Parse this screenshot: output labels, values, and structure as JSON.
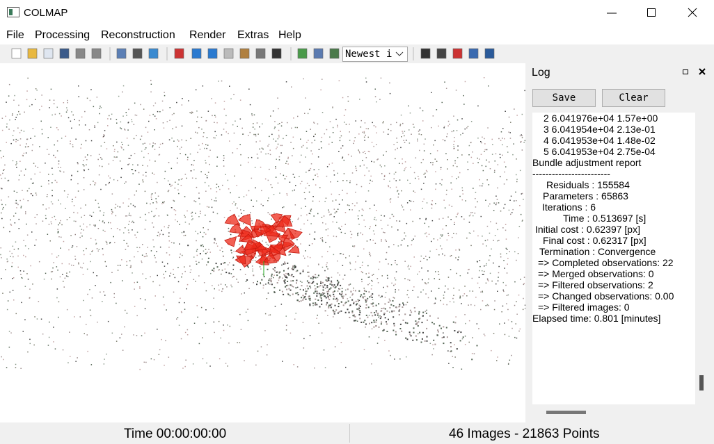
{
  "window": {
    "title": "COLMAP"
  },
  "menu": [
    "File",
    "Processing",
    "Reconstruction",
    "Render",
    "Extras",
    "Help"
  ],
  "toolbar": {
    "combo": "Newest i"
  },
  "log": {
    "title": "Log",
    "buttons": [
      "Save",
      "Clear"
    ],
    "iterations": [
      "2  6.041976e+04     1.57e+00",
      "3  6.041954e+04     2.13e-01",
      "4  6.041953e+04     1.48e-02",
      "5  6.041953e+04     2.75e-04"
    ],
    "report_title": "Bundle adjustment report",
    "separator": "------------------------",
    "report": [
      "Residuals : 155584",
      "Parameters : 65863",
      "Iterations : 6",
      "Time : 0.513697 [s]",
      "Initial cost : 0.62397 [px]",
      "Final cost : 0.62317 [px]",
      "Termination : Convergence"
    ],
    "observations": [
      "=> Completed observations: 22",
      "=> Merged observations: 0",
      "=> Filtered observations: 2",
      "=> Changed observations: 0.00",
      "=> Filtered images: 0"
    ],
    "elapsed": "Elapsed time: 0.801 [minutes]"
  },
  "status": {
    "time": "Time 00:00:00:00",
    "counts": "46 Images - 21863 Points"
  }
}
